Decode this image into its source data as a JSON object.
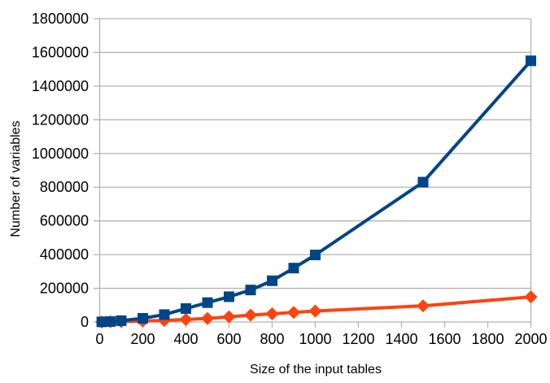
{
  "chart_data": {
    "type": "line",
    "title": "",
    "xlabel": "Size of the input tables",
    "ylabel": "Number of variables",
    "x": [
      10,
      50,
      100,
      200,
      300,
      400,
      500,
      600,
      700,
      800,
      900,
      1000,
      1500,
      2000
    ],
    "series": [
      {
        "name": "blue-squares",
        "marker": "square",
        "color": "#004586",
        "values": [
          1000,
          3000,
          8000,
          22000,
          44000,
          80000,
          115000,
          150000,
          190000,
          245000,
          320000,
          398000,
          830000,
          1550000
        ]
      },
      {
        "name": "orange-diamonds",
        "marker": "diamond",
        "color": "#ff420e",
        "values": [
          200,
          1000,
          2600,
          6000,
          9000,
          15000,
          21000,
          31000,
          41000,
          49000,
          57000,
          65000,
          96000,
          149000
        ]
      }
    ],
    "xlim": [
      0,
      2000
    ],
    "ylim": [
      0,
      1800000
    ],
    "x_ticks": [
      0,
      200,
      400,
      600,
      800,
      1000,
      1200,
      1400,
      1600,
      1800,
      2000
    ],
    "y_ticks": [
      0,
      200000,
      400000,
      600000,
      800000,
      1000000,
      1200000,
      1400000,
      1600000,
      1800000
    ],
    "grid": "horizontal",
    "legend": "none",
    "colors": {
      "background": "#ffffff",
      "gridline": "#b3b3b3",
      "axis": "#b3b3b3",
      "text": "#000000"
    }
  }
}
